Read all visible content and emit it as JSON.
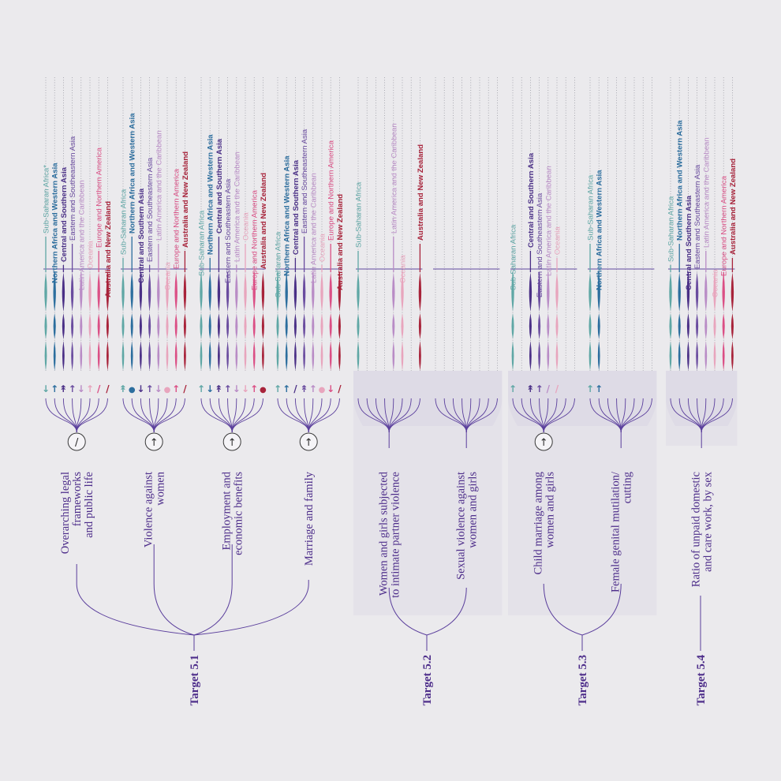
{
  "colors": {
    "Sub-Saharan Africa": "#5fa7a5",
    "Northern Africa and Western Asia": "#2c6e9e",
    "Central and Southern Asia": "#4a2f86",
    "Eastern and Southeastern Asia": "#6a4c9f",
    "Latin America and the Caribbean": "#b98cc6",
    "Oceania": "#e8a5bd",
    "Europe and Northern America": "#db4f85",
    "Australia and New Zealand": "#a8233a",
    "accent": "#5a3e9c",
    "panel": "#dedbe6",
    "background": "#ebeaed"
  },
  "groups": [
    {
      "label_lines": [
        "Overarching legal",
        "frameworks",
        "and public life"
      ],
      "target": "Target 5.1",
      "overall_symbol": "/",
      "has_panel": false,
      "series": [
        {
          "region": "Sub-Saharan Africa*",
          "color_key": "Sub-Saharan Africa",
          "symbol": "↓",
          "bold": false
        },
        {
          "region": "Northern Africa and Western Asia",
          "color_key": "Northern Africa and Western Asia",
          "symbol": "↑",
          "bold": true
        },
        {
          "region": "Central and Southern Asia",
          "color_key": "Central and Southern Asia",
          "symbol": "↟",
          "bold": true
        },
        {
          "region": "Eastern and Southeastern Asia",
          "color_key": "Eastern and Southeastern Asia",
          "symbol": "↑",
          "bold": false
        },
        {
          "region": "Latin America and the Caribbean",
          "color_key": "Latin America and the Caribbean",
          "symbol": "↓",
          "bold": false
        },
        {
          "region": "Oceania",
          "color_key": "Oceania",
          "symbol": "↑",
          "bold": false
        },
        {
          "region": "Europe and Northern America",
          "color_key": "Europe and Northern America",
          "symbol": "/",
          "bold": false
        },
        {
          "region": "Australia and New Zealand",
          "color_key": "Australia and New Zealand",
          "symbol": "/",
          "bold": true
        }
      ]
    },
    {
      "label_lines": [
        "Violence against",
        "women"
      ],
      "target": "Target 5.1",
      "overall_symbol": "↑",
      "has_panel": false,
      "series": [
        {
          "region": "Sub-Saharan Africa",
          "color_key": "Sub-Saharan Africa",
          "symbol": "↟",
          "bold": false
        },
        {
          "region": "Northern Africa and Western Asia",
          "color_key": "Northern Africa and Western Asia",
          "symbol": "●",
          "bold": true
        },
        {
          "region": "Central and Southern Asia",
          "color_key": "Central and Southern Asia",
          "symbol": "↓",
          "bold": true
        },
        {
          "region": "Eastern and Southeastern Asia",
          "color_key": "Eastern and Southeastern Asia",
          "symbol": "↑",
          "bold": false
        },
        {
          "region": "Latin America and the Caribbean",
          "color_key": "Latin America and the Caribbean",
          "symbol": "↓",
          "bold": false
        },
        {
          "region": "Oceania",
          "color_key": "Oceania",
          "symbol": "●",
          "bold": false
        },
        {
          "region": "Europe and Northern America",
          "color_key": "Europe and Northern America",
          "symbol": "↑",
          "bold": false
        },
        {
          "region": "Australia and New Zealand",
          "color_key": "Australia and New Zealand",
          "symbol": "/",
          "bold": true
        }
      ]
    },
    {
      "label_lines": [
        "Employment and",
        "economic benefits"
      ],
      "target": "Target 5.1",
      "overall_symbol": "↑",
      "has_panel": false,
      "series": [
        {
          "region": "Sub-Saharan Africa",
          "color_key": "Sub-Saharan Africa",
          "symbol": "↑",
          "bold": false
        },
        {
          "region": "Northern Africa and Western Asia",
          "color_key": "Northern Africa and Western Asia",
          "symbol": "↓",
          "bold": true
        },
        {
          "region": "Central and Southern Asia",
          "color_key": "Central and Southern Asia",
          "symbol": "↟",
          "bold": true
        },
        {
          "region": "Eastern and Southeastern Asia",
          "color_key": "Eastern and Southeastern Asia",
          "symbol": "↑",
          "bold": false
        },
        {
          "region": "Latin America and the Caribbean",
          "color_key": "Latin America and the Caribbean",
          "symbol": "↓",
          "bold": false
        },
        {
          "region": "Oceania",
          "color_key": "Oceania",
          "symbol": "↓",
          "bold": false
        },
        {
          "region": "Europe and Northern America",
          "color_key": "Europe and Northern America",
          "symbol": "↑",
          "bold": false
        },
        {
          "region": "Australia and New Zealand",
          "color_key": "Australia and New Zealand",
          "symbol": "●",
          "bold": true
        }
      ]
    },
    {
      "label_lines": [
        "Marriage and family"
      ],
      "target": "Target 5.1",
      "overall_symbol": "↑",
      "has_panel": false,
      "series": [
        {
          "region": "Sub-Saharan Africa",
          "color_key": "Sub-Saharan Africa",
          "symbol": "↑",
          "bold": false
        },
        {
          "region": "Northern Africa and Western Asia",
          "color_key": "Northern Africa and Western Asia",
          "symbol": "↑",
          "bold": true
        },
        {
          "region": "Central and Southern Asia",
          "color_key": "Central and Southern Asia",
          "symbol": "/",
          "bold": true
        },
        {
          "region": "Eastern and Southeastern Asia",
          "color_key": "Eastern and Southeastern Asia",
          "symbol": "↟",
          "bold": false
        },
        {
          "region": "Latin America and the Caribbean",
          "color_key": "Latin America and the Caribbean",
          "symbol": "↑",
          "bold": false
        },
        {
          "region": "Oceania",
          "color_key": "Oceania",
          "symbol": "●",
          "bold": false
        },
        {
          "region": "Europe and Northern America",
          "color_key": "Europe and Northern America",
          "symbol": "↓",
          "bold": false
        },
        {
          "region": "Australia and New Zealand",
          "color_key": "Australia and New Zealand",
          "symbol": "/",
          "bold": true
        }
      ]
    },
    {
      "label_lines": [
        "Women and girls subjected",
        "to intimate partner violence"
      ],
      "target": "Target 5.2",
      "overall_symbol": "",
      "has_panel": true,
      "series": [
        {
          "region": "Sub-Saharan Africa",
          "color_key": "Sub-Saharan Africa",
          "symbol": "",
          "bold": false
        },
        {
          "region": "",
          "color_key": "",
          "symbol": "",
          "bold": false
        },
        {
          "region": "",
          "color_key": "",
          "symbol": "",
          "bold": false
        },
        {
          "region": "",
          "color_key": "",
          "symbol": "",
          "bold": false
        },
        {
          "region": "Latin America and the Caribbean",
          "color_key": "Latin America and the Caribbean",
          "symbol": "",
          "bold": false
        },
        {
          "region": "Oceania",
          "color_key": "Oceania",
          "symbol": "",
          "bold": false
        },
        {
          "region": "",
          "color_key": "",
          "symbol": "",
          "bold": false
        },
        {
          "region": "Australia and New Zealand",
          "color_key": "Australia and New Zealand",
          "symbol": "",
          "bold": true
        }
      ]
    },
    {
      "label_lines": [
        "Sexual violence against",
        "women and girls"
      ],
      "target": "Target 5.2",
      "overall_symbol": "",
      "has_panel": true,
      "series": [
        {
          "region": "",
          "color_key": "",
          "symbol": "",
          "bold": false
        },
        {
          "region": "",
          "color_key": "",
          "symbol": "",
          "bold": false
        },
        {
          "region": "",
          "color_key": "",
          "symbol": "",
          "bold": false
        },
        {
          "region": "",
          "color_key": "",
          "symbol": "",
          "bold": false
        },
        {
          "region": "",
          "color_key": "",
          "symbol": "",
          "bold": false
        },
        {
          "region": "",
          "color_key": "",
          "symbol": "",
          "bold": false
        },
        {
          "region": "",
          "color_key": "",
          "symbol": "",
          "bold": false
        },
        {
          "region": "",
          "color_key": "",
          "symbol": "",
          "bold": false
        }
      ]
    },
    {
      "label_lines": [
        "Child marriage among",
        "women and girls"
      ],
      "target": "Target 5.3",
      "overall_symbol": "↑",
      "has_panel": true,
      "series": [
        {
          "region": "Sub-Saharan Africa",
          "color_key": "Sub-Saharan Africa",
          "symbol": "↑",
          "bold": false
        },
        {
          "region": "",
          "color_key": "",
          "symbol": "",
          "bold": false
        },
        {
          "region": "Central and Southern Asia",
          "color_key": "Central and Southern Asia",
          "symbol": "↟",
          "bold": true
        },
        {
          "region": "Eastern and Southeastern Asia",
          "color_key": "Eastern and Southeastern Asia",
          "symbol": "↑",
          "bold": false
        },
        {
          "region": "Latin America and the Caribbean",
          "color_key": "Latin America and the Caribbean",
          "symbol": "/",
          "bold": false
        },
        {
          "region": "Oceania",
          "color_key": "Oceania",
          "symbol": "/",
          "bold": false
        },
        {
          "region": "",
          "color_key": "",
          "symbol": "",
          "bold": false
        },
        {
          "region": "",
          "color_key": "",
          "symbol": "",
          "bold": false
        }
      ]
    },
    {
      "label_lines": [
        "Female genital mutilation/",
        "cutting"
      ],
      "target": "Target 5.3",
      "overall_symbol": "",
      "has_panel": true,
      "series": [
        {
          "region": "Sub-Saharan Africa",
          "color_key": "Sub-Saharan Africa",
          "symbol": "↑",
          "bold": false
        },
        {
          "region": "Northern Africa and Western Asia",
          "color_key": "Northern Africa and Western Asia",
          "symbol": "↑",
          "bold": true
        },
        {
          "region": "",
          "color_key": "",
          "symbol": "",
          "bold": false
        },
        {
          "region": "",
          "color_key": "",
          "symbol": "",
          "bold": false
        },
        {
          "region": "",
          "color_key": "",
          "symbol": "",
          "bold": false
        },
        {
          "region": "",
          "color_key": "",
          "symbol": "",
          "bold": false
        },
        {
          "region": "",
          "color_key": "",
          "symbol": "",
          "bold": false
        },
        {
          "region": "",
          "color_key": "",
          "symbol": "",
          "bold": false
        }
      ]
    },
    {
      "label_lines": [
        "Ratio of unpaid domestic",
        "and care work, by sex"
      ],
      "target": "Target 5.4",
      "overall_symbol": "",
      "has_panel": true,
      "series": [
        {
          "region": "Sub-Saharan Africa",
          "color_key": "Sub-Saharan Africa",
          "symbol": "",
          "bold": false
        },
        {
          "region": "Northern Africa and Western Asia",
          "color_key": "Northern Africa and Western Asia",
          "symbol": "",
          "bold": true
        },
        {
          "region": "Central and Southern Asia",
          "color_key": "Central and Southern Asia",
          "symbol": "",
          "bold": true
        },
        {
          "region": "Eastern and Southeastern Asia",
          "color_key": "Eastern and Southeastern Asia",
          "symbol": "",
          "bold": false
        },
        {
          "region": "Latin America and the Caribbean",
          "color_key": "Latin America and the Caribbean",
          "symbol": "",
          "bold": false
        },
        {
          "region": "Oceania",
          "color_key": "Oceania",
          "symbol": "",
          "bold": false
        },
        {
          "region": "Europe and Northern America",
          "color_key": "Europe and Northern America",
          "symbol": "",
          "bold": false
        },
        {
          "region": "Australia and New Zealand",
          "color_key": "Australia and New Zealand",
          "symbol": "",
          "bold": true
        }
      ]
    }
  ],
  "targets": [
    {
      "label": "Target 5.1"
    },
    {
      "label": "Target 5.2"
    },
    {
      "label": "Target 5.3"
    },
    {
      "label": "Target 5.4"
    }
  ]
}
